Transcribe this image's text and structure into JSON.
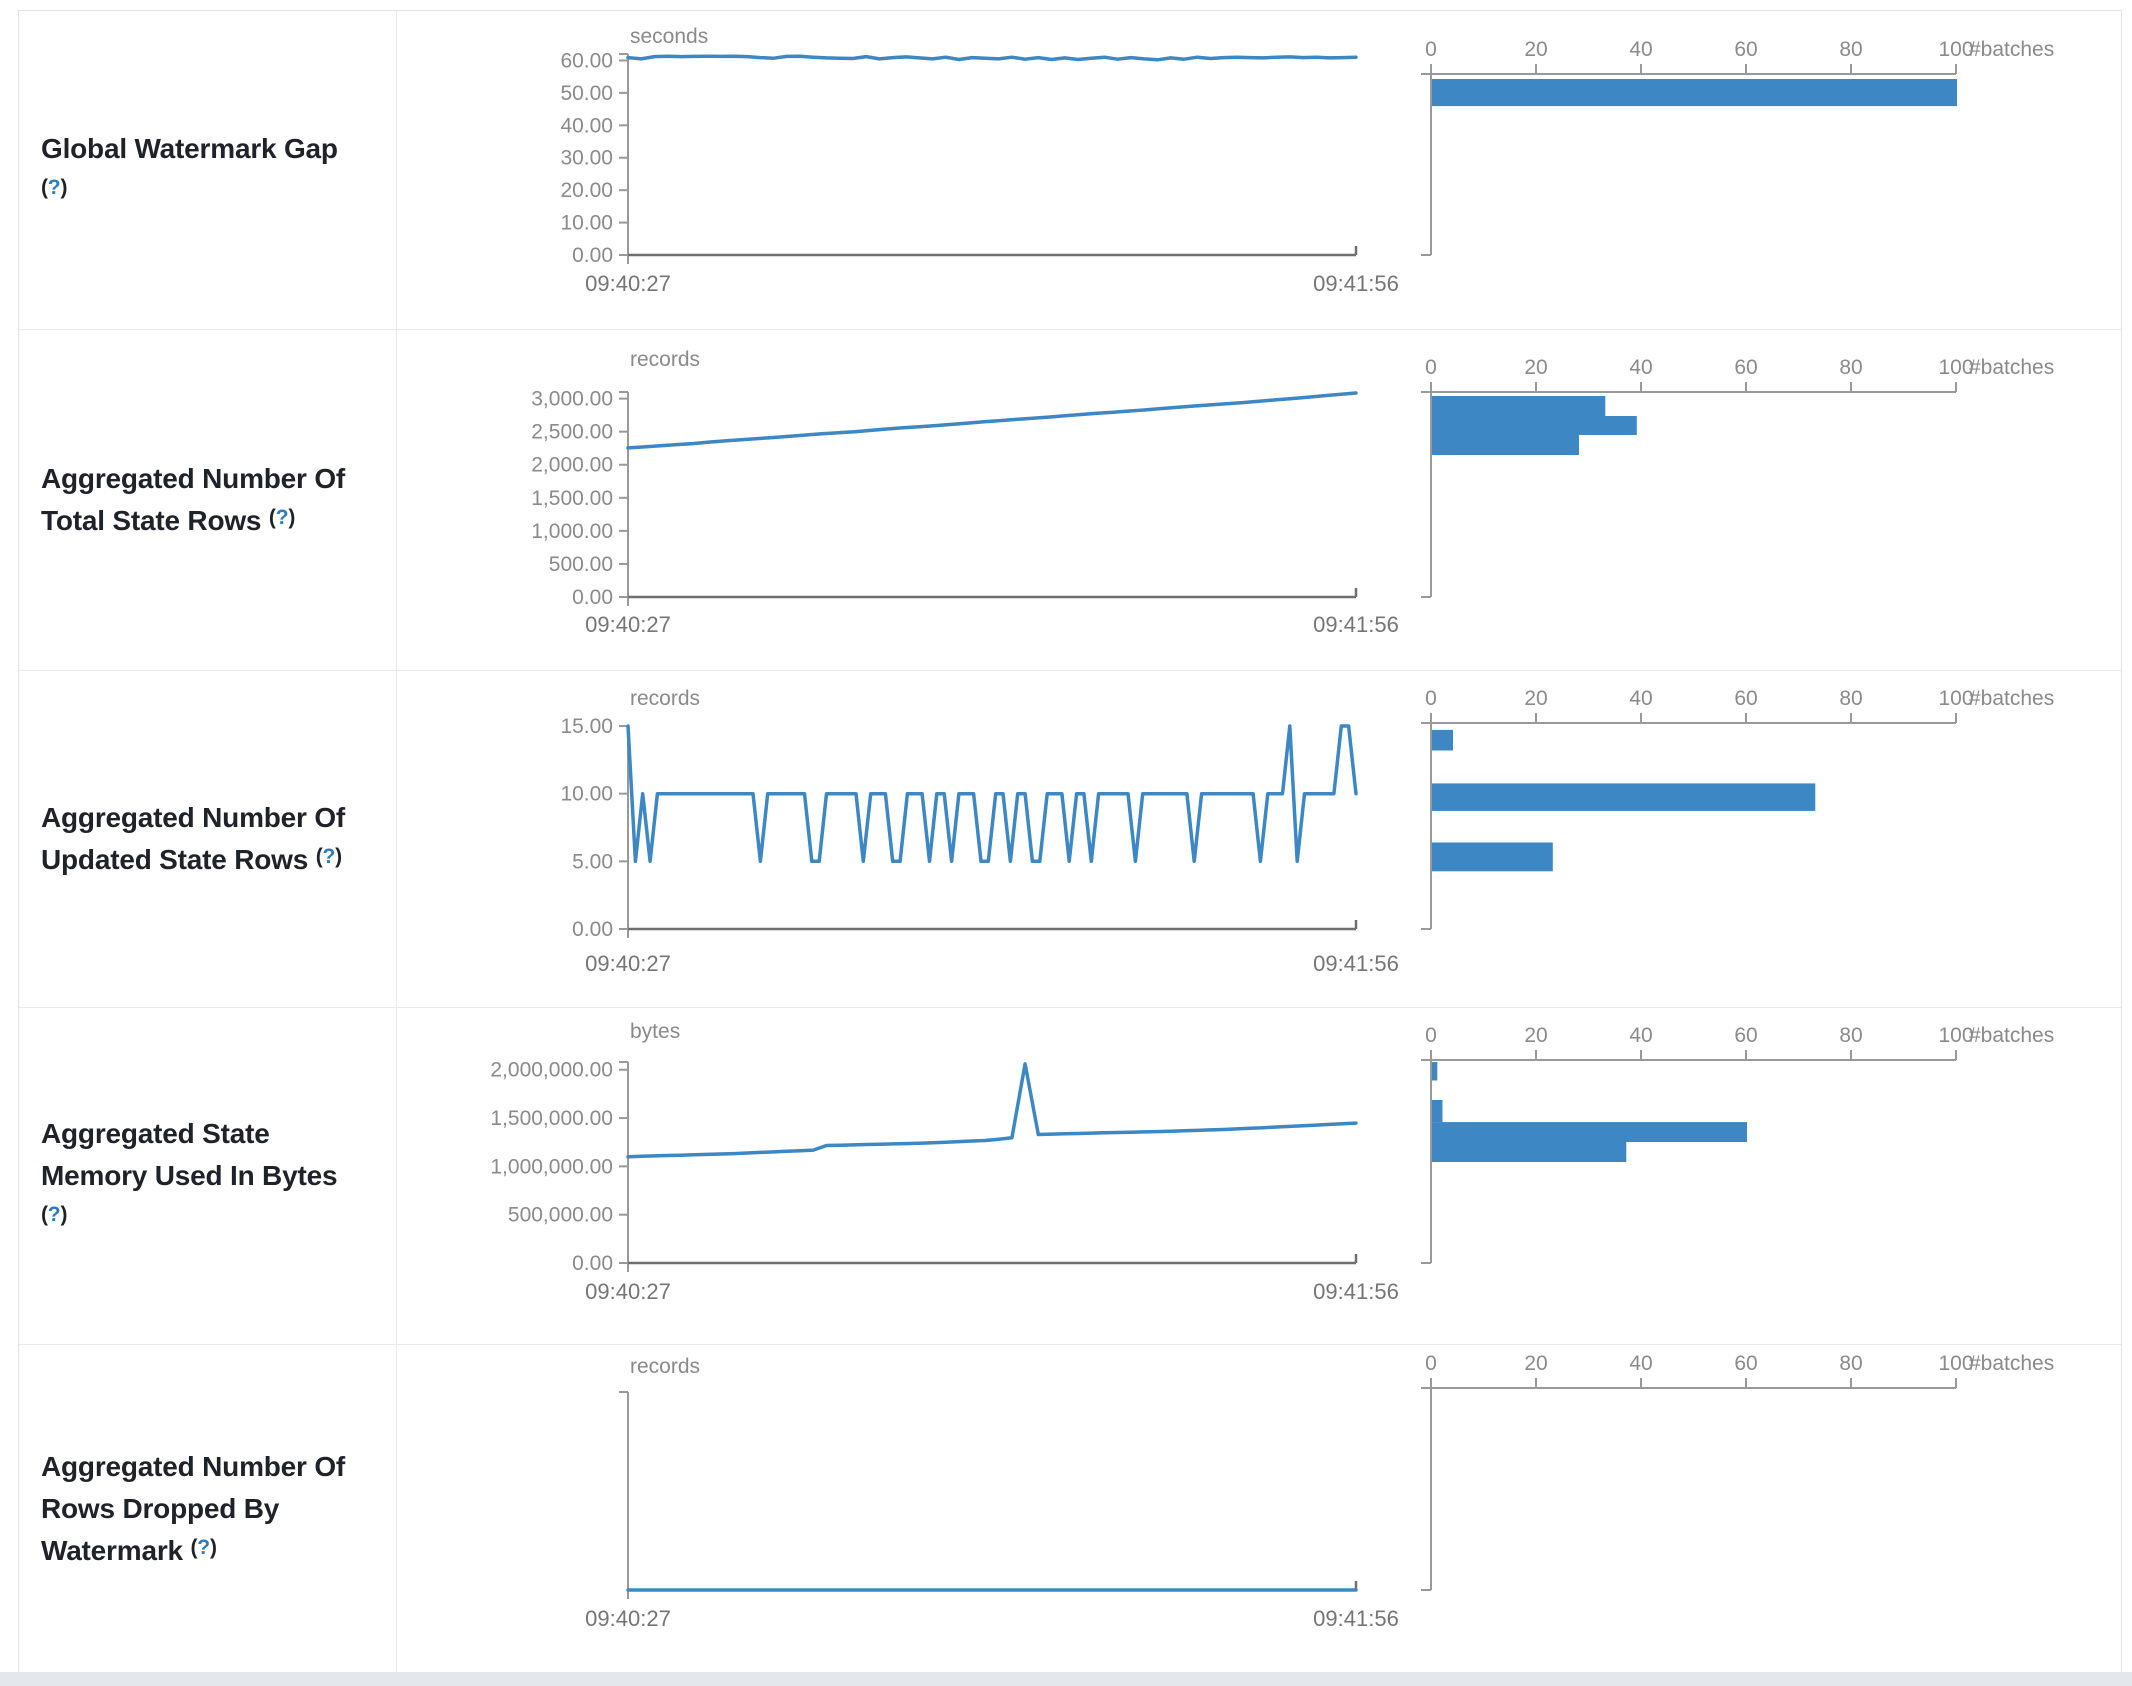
{
  "theme": {
    "series_color": "#3c87c4",
    "axis_color": "#999999",
    "axis_dark_color": "#6f6f6f",
    "tick_text_color": "#8a8a8a",
    "time_text_color": "#757575",
    "label_text_color": "#1f2329",
    "help_color": "#2e7cbe",
    "row_border_color": "#e8eaed",
    "card_border_color": "#dfe3e8"
  },
  "ui": {
    "paren_open": "(",
    "help_q": "?",
    "paren_close": ")"
  },
  "rows": [
    {
      "label": "Global Watermark Gap",
      "timeline": {
        "unit": "seconds",
        "x_start": "09:40:27",
        "x_end": "09:41:56",
        "y_tick_values": [
          0,
          10,
          20,
          30,
          40,
          50,
          60
        ],
        "y_tick_labels": [
          "0.00",
          "10.00",
          "20.00",
          "30.00",
          "40.00",
          "50.00",
          "60.00"
        ],
        "y_max": 62,
        "values": [
          60.9,
          60.5,
          61.2,
          61.3,
          61.2,
          61.25,
          61.3,
          61.25,
          61.3,
          61.2,
          60.9,
          60.7,
          61.25,
          61.3,
          61.0,
          60.8,
          60.7,
          60.6,
          61.2,
          60.5,
          60.9,
          61.1,
          60.8,
          60.5,
          61.0,
          60.3,
          60.9,
          60.7,
          60.5,
          61.0,
          60.4,
          60.9,
          60.3,
          60.8,
          60.3,
          60.7,
          61.0,
          60.4,
          60.9,
          60.5,
          60.2,
          60.8,
          60.4,
          61.0,
          60.6,
          60.9,
          61.0,
          60.9,
          60.8,
          61.0,
          61.1,
          60.9,
          61.0,
          60.8,
          60.9,
          61.0
        ]
      },
      "histogram": {
        "axis_label": "#batches",
        "x_tick_values": [
          0,
          20,
          40,
          60,
          80,
          100
        ],
        "x_tick_labels": [
          "0",
          "20",
          "40",
          "60",
          "80",
          "100"
        ],
        "x_max": 100,
        "bars": [
          {
            "lo": 51.0,
            "hi": 60.3,
            "count": 100
          }
        ]
      }
    },
    {
      "label": "Aggregated Number Of Total State Rows",
      "timeline": {
        "unit": "records",
        "x_start": "09:40:27",
        "x_end": "09:41:56",
        "y_tick_values": [
          0,
          500,
          1000,
          1500,
          2000,
          2500,
          3000
        ],
        "y_tick_labels": [
          "0.00",
          "500.00",
          "1,000.00",
          "1,500.00",
          "2,000.00",
          "2,500.00",
          "3,000.00"
        ],
        "y_max": 3100,
        "values": [
          2255,
          2270,
          2288,
          2305,
          2320,
          2342,
          2360,
          2378,
          2395,
          2412,
          2430,
          2450,
          2468,
          2485,
          2500,
          2520,
          2540,
          2558,
          2575,
          2592,
          2610,
          2630,
          2650,
          2668,
          2685,
          2702,
          2720,
          2740,
          2760,
          2778,
          2795,
          2812,
          2830,
          2850,
          2870,
          2888,
          2905,
          2922,
          2940,
          2960,
          2980,
          3000,
          3020,
          3042,
          3063,
          3085
        ]
      },
      "histogram": {
        "axis_label": "#batches",
        "x_tick_values": [
          0,
          20,
          40,
          60,
          80,
          100
        ],
        "x_tick_labels": [
          "0",
          "20",
          "40",
          "60",
          "80",
          "100"
        ],
        "x_max": 100,
        "bars": [
          {
            "lo": 2737,
            "hi": 3039,
            "count": 33
          },
          {
            "lo": 2450,
            "hi": 2737,
            "count": 39
          },
          {
            "lo": 2147,
            "hi": 2450,
            "count": 28
          }
        ]
      }
    },
    {
      "label": "Aggregated Number Of Updated State Rows",
      "timeline": {
        "unit": "records",
        "x_start": "09:40:27",
        "x_end": "09:41:56",
        "y_tick_values": [
          0,
          5,
          10,
          15
        ],
        "y_tick_labels": [
          "0.00",
          "5.00",
          "10.00",
          "15.00"
        ],
        "y_max": 15,
        "values": [
          15,
          5,
          10,
          5,
          10,
          10,
          10,
          10,
          10,
          10,
          10,
          10,
          10,
          10,
          10,
          10,
          10,
          10,
          5,
          10,
          10,
          10,
          10,
          10,
          10,
          5,
          5,
          10,
          10,
          10,
          10,
          10,
          5,
          10,
          10,
          10,
          5,
          5,
          10,
          10,
          10,
          5,
          10,
          10,
          5,
          10,
          10,
          10,
          5,
          5,
          10,
          10,
          5,
          10,
          10,
          5,
          5,
          10,
          10,
          10,
          5,
          10,
          10,
          5,
          10,
          10,
          10,
          10,
          10,
          5,
          10,
          10,
          10,
          10,
          10,
          10,
          10,
          5,
          10,
          10,
          10,
          10,
          10,
          10,
          10,
          10,
          5,
          10,
          10,
          10,
          15,
          5,
          10,
          10,
          10,
          10,
          10,
          15,
          15,
          10
        ]
      },
      "histogram": {
        "axis_label": "#batches",
        "x_tick_values": [
          0,
          20,
          40,
          60,
          80,
          100
        ],
        "x_tick_labels": [
          "0",
          "20",
          "40",
          "60",
          "80",
          "100"
        ],
        "x_max": 100,
        "bars": [
          {
            "lo": 13.0,
            "hi": 14.5,
            "count": 4
          },
          {
            "lo": 8.6,
            "hi": 10.6,
            "count": 73
          },
          {
            "lo": 4.2,
            "hi": 6.3,
            "count": 23
          }
        ]
      }
    },
    {
      "label": "Aggregated State Memory Used In Bytes",
      "timeline": {
        "unit": "bytes",
        "x_start": "09:40:27",
        "x_end": "09:41:56",
        "y_tick_values": [
          0,
          500000,
          1000000,
          1500000,
          2000000
        ],
        "y_tick_labels": [
          "0.00",
          "500,000.00",
          "1,000,000.00",
          "1,500,000.00",
          "2,000,000.00"
        ],
        "y_max": 2080000,
        "values": [
          1100000,
          1104000,
          1108000,
          1112000,
          1116000,
          1120000,
          1124000,
          1128000,
          1132000,
          1138000,
          1144000,
          1150000,
          1156000,
          1162000,
          1168000,
          1216000,
          1219000,
          1222000,
          1226000,
          1229000,
          1232000,
          1236000,
          1240000,
          1245000,
          1250000,
          1256000,
          1262000,
          1268000,
          1280000,
          1296000,
          2060000,
          1330000,
          1334000,
          1337000,
          1340000,
          1344000,
          1347000,
          1350000,
          1354000,
          1357000,
          1360000,
          1364000,
          1368000,
          1372000,
          1377000,
          1382000,
          1388000,
          1394000,
          1400000,
          1407000,
          1414000,
          1420000,
          1427000,
          1434000,
          1441000,
          1448000
        ]
      },
      "histogram": {
        "axis_label": "#batches",
        "x_tick_values": [
          0,
          20,
          40,
          60,
          80,
          100
        ],
        "x_tick_labels": [
          "0",
          "20",
          "40",
          "60",
          "80",
          "100"
        ],
        "x_max": 100,
        "bars": [
          {
            "lo": 1870000,
            "hi": 2060000,
            "count": 1
          },
          {
            "lo": 1444000,
            "hi": 1670000,
            "count": 2
          },
          {
            "lo": 1240000,
            "hi": 1444000,
            "count": 60
          },
          {
            "lo": 1035000,
            "hi": 1240000,
            "count": 37
          }
        ]
      }
    },
    {
      "label": "Aggregated Number Of Rows Dropped By Watermark",
      "timeline": {
        "unit": "records",
        "x_start": "09:40:27",
        "x_end": "09:41:56",
        "y_tick_values": [],
        "y_tick_labels": [],
        "y_max": 1,
        "values": [
          0,
          0
        ]
      },
      "histogram": {
        "axis_label": "#batches",
        "x_tick_values": [
          0,
          20,
          40,
          60,
          80,
          100
        ],
        "x_tick_labels": [
          "0",
          "20",
          "40",
          "60",
          "80",
          "100"
        ],
        "x_max": 100,
        "bars": []
      }
    }
  ]
}
